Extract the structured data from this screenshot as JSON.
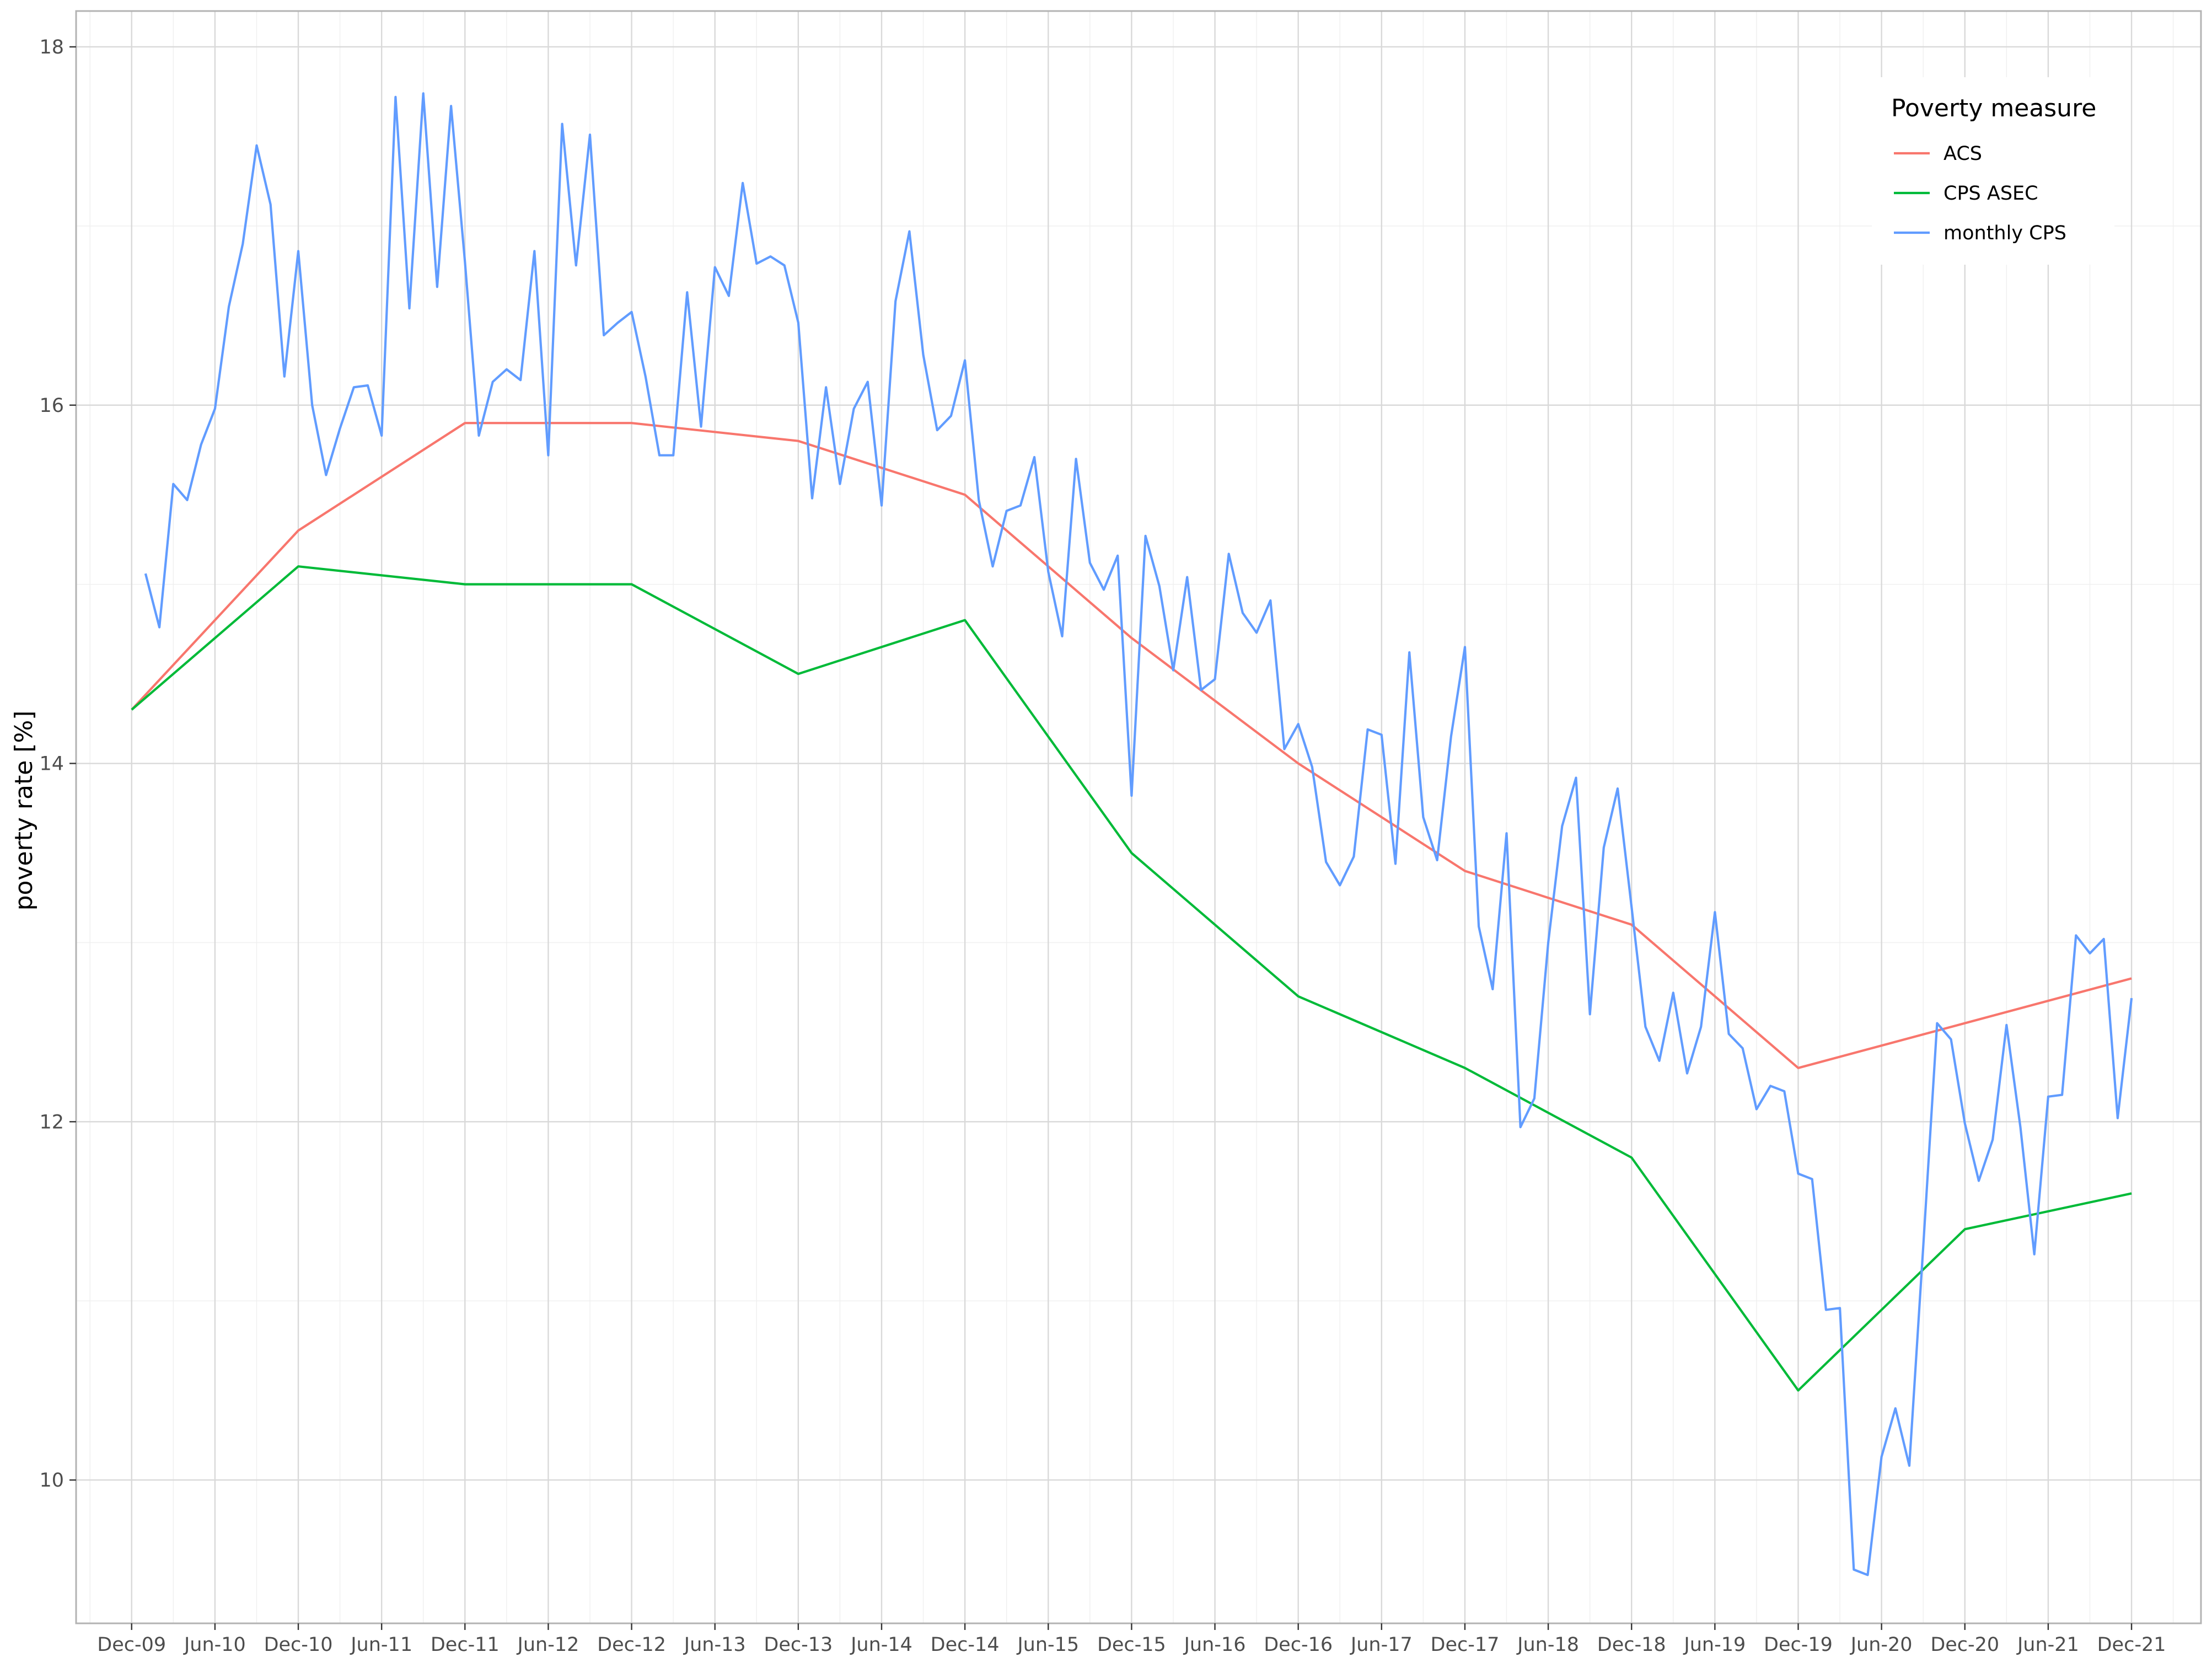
{
  "chart_data": {
    "type": "line",
    "title": "",
    "xlabel": "",
    "ylabel": "poverty rate [%]",
    "ylim": [
      9.2,
      18.2
    ],
    "yticks": [
      10,
      12,
      14,
      16,
      18
    ],
    "xlim": [
      "2009-08",
      "2022-05"
    ],
    "x_ticks": [
      {
        "date": "2009-12",
        "label": "Dec-09"
      },
      {
        "date": "2010-06",
        "label": "Jun-10"
      },
      {
        "date": "2010-12",
        "label": "Dec-10"
      },
      {
        "date": "2011-06",
        "label": "Jun-11"
      },
      {
        "date": "2011-12",
        "label": "Dec-11"
      },
      {
        "date": "2012-06",
        "label": "Jun-12"
      },
      {
        "date": "2012-12",
        "label": "Dec-12"
      },
      {
        "date": "2013-06",
        "label": "Jun-13"
      },
      {
        "date": "2013-12",
        "label": "Dec-13"
      },
      {
        "date": "2014-06",
        "label": "Jun-14"
      },
      {
        "date": "2014-12",
        "label": "Dec-14"
      },
      {
        "date": "2015-06",
        "label": "Jun-15"
      },
      {
        "date": "2015-12",
        "label": "Dec-15"
      },
      {
        "date": "2016-06",
        "label": "Jun-16"
      },
      {
        "date": "2016-12",
        "label": "Dec-16"
      },
      {
        "date": "2017-06",
        "label": "Jun-17"
      },
      {
        "date": "2017-12",
        "label": "Dec-17"
      },
      {
        "date": "2018-06",
        "label": "Jun-18"
      },
      {
        "date": "2018-12",
        "label": "Dec-18"
      },
      {
        "date": "2019-06",
        "label": "Jun-19"
      },
      {
        "date": "2019-12",
        "label": "Dec-19"
      },
      {
        "date": "2020-06",
        "label": "Jun-20"
      },
      {
        "date": "2020-12",
        "label": "Dec-20"
      },
      {
        "date": "2021-06",
        "label": "Jun-21"
      },
      {
        "date": "2021-12",
        "label": "Dec-21"
      }
    ],
    "grid": true,
    "legend": {
      "title": "Poverty measure",
      "position": "top-right"
    },
    "series": [
      {
        "name": "ACS",
        "color": "#F8766D",
        "points": [
          [
            "2009-12",
            14.3
          ],
          [
            "2010-12",
            15.3
          ],
          [
            "2011-12",
            15.9
          ],
          [
            "2012-12",
            15.9
          ],
          [
            "2013-12",
            15.8
          ],
          [
            "2014-12",
            15.5
          ],
          [
            "2015-12",
            14.7
          ],
          [
            "2016-12",
            14.0
          ],
          [
            "2017-12",
            13.4
          ],
          [
            "2018-12",
            13.1
          ],
          [
            "2019-12",
            12.3
          ],
          [
            "2021-12",
            12.8
          ]
        ]
      },
      {
        "name": "CPS ASEC",
        "color": "#00BA38",
        "points": [
          [
            "2009-12",
            14.3
          ],
          [
            "2010-12",
            15.1
          ],
          [
            "2011-12",
            15.0
          ],
          [
            "2012-12",
            15.0
          ],
          [
            "2013-12",
            14.5
          ],
          [
            "2014-12",
            14.8
          ],
          [
            "2015-12",
            13.5
          ],
          [
            "2016-12",
            12.7
          ],
          [
            "2017-12",
            12.3
          ],
          [
            "2018-12",
            11.8
          ],
          [
            "2019-12",
            10.5
          ],
          [
            "2020-12",
            11.4
          ],
          [
            "2021-12",
            11.6
          ]
        ]
      },
      {
        "name": "monthly CPS",
        "color": "#619CFF",
        "points": [
          [
            "2010-01",
            15.06
          ],
          [
            "2010-02",
            14.76
          ],
          [
            "2010-03",
            15.56
          ],
          [
            "2010-04",
            15.47
          ],
          [
            "2010-05",
            15.78
          ],
          [
            "2010-06",
            15.98
          ],
          [
            "2010-07",
            16.55
          ],
          [
            "2010-08",
            16.9
          ],
          [
            "2010-09",
            17.45
          ],
          [
            "2010-10",
            17.12
          ],
          [
            "2010-11",
            16.16
          ],
          [
            "2010-12",
            16.86
          ],
          [
            "2011-01",
            16.0
          ],
          [
            "2011-02",
            15.61
          ],
          [
            "2011-03",
            15.87
          ],
          [
            "2011-04",
            16.1
          ],
          [
            "2011-05",
            16.11
          ],
          [
            "2011-06",
            15.83
          ],
          [
            "2011-07",
            17.72
          ],
          [
            "2011-08",
            16.54
          ],
          [
            "2011-09",
            17.74
          ],
          [
            "2011-10",
            16.66
          ],
          [
            "2011-11",
            17.67
          ],
          [
            "2011-12",
            16.8
          ],
          [
            "2012-01",
            15.83
          ],
          [
            "2012-02",
            16.13
          ],
          [
            "2012-03",
            16.2
          ],
          [
            "2012-04",
            16.14
          ],
          [
            "2012-05",
            16.86
          ],
          [
            "2012-06",
            15.72
          ],
          [
            "2012-07",
            17.57
          ],
          [
            "2012-08",
            16.78
          ],
          [
            "2012-09",
            17.51
          ],
          [
            "2012-10",
            16.39
          ],
          [
            "2012-11",
            16.46
          ],
          [
            "2012-12",
            16.52
          ],
          [
            "2013-01",
            16.16
          ],
          [
            "2013-02",
            15.72
          ],
          [
            "2013-03",
            15.72
          ],
          [
            "2013-04",
            16.63
          ],
          [
            "2013-05",
            15.88
          ],
          [
            "2013-06",
            16.77
          ],
          [
            "2013-07",
            16.61
          ],
          [
            "2013-08",
            17.24
          ],
          [
            "2013-09",
            16.79
          ],
          [
            "2013-10",
            16.83
          ],
          [
            "2013-11",
            16.78
          ],
          [
            "2013-12",
            16.46
          ],
          [
            "2014-01",
            15.48
          ],
          [
            "2014-02",
            16.1
          ],
          [
            "2014-03",
            15.56
          ],
          [
            "2014-04",
            15.98
          ],
          [
            "2014-05",
            16.13
          ],
          [
            "2014-06",
            15.44
          ],
          [
            "2014-07",
            16.58
          ],
          [
            "2014-08",
            16.97
          ],
          [
            "2014-09",
            16.28
          ],
          [
            "2014-10",
            15.86
          ],
          [
            "2014-11",
            15.94
          ],
          [
            "2014-12",
            16.25
          ],
          [
            "2015-01",
            15.47
          ],
          [
            "2015-02",
            15.1
          ],
          [
            "2015-03",
            15.41
          ],
          [
            "2015-04",
            15.44
          ],
          [
            "2015-05",
            15.71
          ],
          [
            "2015-06",
            15.07
          ],
          [
            "2015-07",
            14.71
          ],
          [
            "2015-08",
            15.7
          ],
          [
            "2015-09",
            15.12
          ],
          [
            "2015-10",
            14.97
          ],
          [
            "2015-11",
            15.16
          ],
          [
            "2015-12",
            13.82
          ],
          [
            "2016-01",
            15.27
          ],
          [
            "2016-02",
            14.99
          ],
          [
            "2016-03",
            14.52
          ],
          [
            "2016-04",
            15.04
          ],
          [
            "2016-05",
            14.41
          ],
          [
            "2016-06",
            14.47
          ],
          [
            "2016-07",
            15.17
          ],
          [
            "2016-08",
            14.84
          ],
          [
            "2016-09",
            14.73
          ],
          [
            "2016-10",
            14.91
          ],
          [
            "2016-11",
            14.08
          ],
          [
            "2016-12",
            14.22
          ],
          [
            "2017-01",
            13.98
          ],
          [
            "2017-02",
            13.45
          ],
          [
            "2017-03",
            13.32
          ],
          [
            "2017-04",
            13.48
          ],
          [
            "2017-05",
            14.19
          ],
          [
            "2017-06",
            14.16
          ],
          [
            "2017-07",
            13.44
          ],
          [
            "2017-08",
            14.62
          ],
          [
            "2017-09",
            13.7
          ],
          [
            "2017-10",
            13.46
          ],
          [
            "2017-11",
            14.15
          ],
          [
            "2017-12",
            14.65
          ],
          [
            "2018-01",
            13.09
          ],
          [
            "2018-02",
            12.74
          ],
          [
            "2018-03",
            13.61
          ],
          [
            "2018-04",
            11.97
          ],
          [
            "2018-05",
            12.13
          ],
          [
            "2018-06",
            13.0
          ],
          [
            "2018-07",
            13.65
          ],
          [
            "2018-08",
            13.92
          ],
          [
            "2018-09",
            12.6
          ],
          [
            "2018-10",
            13.53
          ],
          [
            "2018-11",
            13.86
          ],
          [
            "2018-12",
            13.2
          ],
          [
            "2019-01",
            12.53
          ],
          [
            "2019-02",
            12.34
          ],
          [
            "2019-03",
            12.72
          ],
          [
            "2019-04",
            12.27
          ],
          [
            "2019-05",
            12.53
          ],
          [
            "2019-06",
            13.17
          ],
          [
            "2019-07",
            12.49
          ],
          [
            "2019-08",
            12.41
          ],
          [
            "2019-09",
            12.07
          ],
          [
            "2019-10",
            12.2
          ],
          [
            "2019-11",
            12.17
          ],
          [
            "2019-12",
            11.71
          ],
          [
            "2020-01",
            11.68
          ],
          [
            "2020-02",
            10.95
          ],
          [
            "2020-03",
            10.96
          ],
          [
            "2020-04",
            9.5
          ],
          [
            "2020-05",
            9.47
          ],
          [
            "2020-06",
            10.13
          ],
          [
            "2020-07",
            10.4
          ],
          [
            "2020-08",
            10.08
          ],
          [
            "2020-09",
            11.3
          ],
          [
            "2020-10",
            12.55
          ],
          [
            "2020-11",
            12.46
          ],
          [
            "2020-12",
            11.99
          ],
          [
            "2021-01",
            11.67
          ],
          [
            "2021-02",
            11.9
          ],
          [
            "2021-03",
            12.54
          ],
          [
            "2021-04",
            11.97
          ],
          [
            "2021-05",
            11.26
          ],
          [
            "2021-06",
            12.14
          ],
          [
            "2021-07",
            12.15
          ],
          [
            "2021-08",
            13.04
          ],
          [
            "2021-09",
            12.94
          ],
          [
            "2021-10",
            13.02
          ],
          [
            "2021-11",
            12.02
          ],
          [
            "2021-12",
            12.69
          ]
        ]
      }
    ]
  }
}
